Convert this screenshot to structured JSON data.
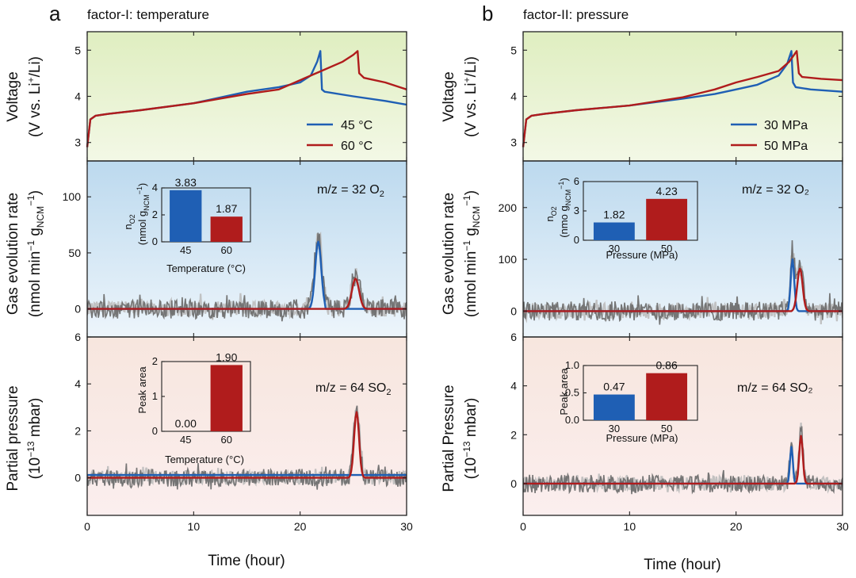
{
  "colors": {
    "blue": "#1f5fb4",
    "red": "#b01c1c",
    "noise_dark": "#6f6f6f",
    "noise_light": "#bdbdbd",
    "green_bg": "#e4f0c8",
    "blue_bg_top": "#bfdcef",
    "pink_bg_top": "#f6e2da"
  },
  "panel_a": {
    "letter": "a",
    "factor_title": "factor-I: temperature"
  },
  "panel_b": {
    "letter": "b",
    "factor_title": "factor-II: pressure"
  },
  "labels": {
    "voltage_y1": "Voltage",
    "voltage_y2": "(V vs. Li",
    "voltage_y2_sup": "+",
    "voltage_y2_end": "/Li)",
    "gas_y1": "Gas evolution rate",
    "gas_y2": "(nmol min",
    "gas_y2_sup": "−1",
    "gas_y2_mid": " g",
    "gas_y2_sub": "NCM",
    "gas_y2_sup2": "−1",
    "gas_y2_end": ")",
    "pp_a_y1": "Partial pressure",
    "pp_b_y1": "Partial Pressure",
    "pp_y2": "(10",
    "pp_y2_sup": "−13",
    "pp_y2_end": " mbar)",
    "x_label": "Time (hour)",
    "o2_a": "m/z = 32 O",
    "o2_a_sub": "2",
    "o2_b": "m/z = 32 O₂",
    "so2": "m/z = 64 SO",
    "so2_sub": "2",
    "so2_b": "m/z = 64 SO₂",
    "inset_n_a": "n",
    "inset_n_a_sub": "O2",
    "inset_unit_a": "(nmol g",
    "inset_unit_a_sub": "NCM",
    "inset_unit_a_sup": "−1",
    "inset_unit_a_end": ")",
    "inset_unit_b": "(nmo g",
    "peak_area": "Peak area",
    "temp_axis": "Temperature (°C)",
    "pressure_axis": "Pressure (MPa)"
  },
  "chart_data": [
    {
      "id": "a-voltage",
      "type": "line",
      "title": "factor-I: temperature",
      "ylabel": "Voltage (V vs. Li+/Li)",
      "xlim": [
        0,
        30
      ],
      "ylim": [
        2.6,
        5.4
      ],
      "yticks": [
        3,
        4,
        5
      ],
      "series": [
        {
          "name": "45 °C",
          "color": "blue",
          "x": [
            0,
            0.3,
            0.8,
            2,
            5,
            10,
            15,
            18,
            20,
            21,
            21.6,
            21.9,
            22.05,
            22.3,
            25,
            28,
            30
          ],
          "y": [
            2.9,
            3.5,
            3.58,
            3.62,
            3.7,
            3.85,
            4.1,
            4.2,
            4.3,
            4.45,
            4.75,
            4.98,
            4.15,
            4.1,
            4.0,
            3.9,
            3.82
          ]
        },
        {
          "name": "60 °C",
          "color": "red",
          "x": [
            0,
            0.3,
            0.8,
            2,
            5,
            10,
            15,
            18,
            20,
            22,
            24,
            25,
            25.4,
            25.55,
            26,
            28,
            30
          ],
          "y": [
            2.9,
            3.5,
            3.58,
            3.62,
            3.7,
            3.85,
            4.05,
            4.15,
            4.35,
            4.55,
            4.75,
            4.9,
            4.98,
            4.5,
            4.4,
            4.3,
            4.15
          ]
        }
      ]
    },
    {
      "id": "a-gas",
      "type": "line",
      "ylabel": "Gas evolution rate (nmol min−1 gNCM−1)",
      "annotation": "m/z = 32 O2",
      "xlim": [
        0,
        30
      ],
      "ylim": [
        -25,
        132
      ],
      "yticks": [
        0,
        50,
        100
      ],
      "series": [
        {
          "name": "45 °C",
          "color": "blue",
          "peak_center": 21.7,
          "peak_height": 60,
          "peak_range": [
            20.6,
            22.3
          ]
        },
        {
          "name": "60 °C",
          "color": "red",
          "peak_center": 25.2,
          "peak_height": 27,
          "peak_range": [
            24.2,
            26.2
          ]
        }
      ],
      "inset": {
        "type": "bar",
        "ylabel": "nO2 (nmol gNCM−1)",
        "xlabel": "Temperature (°C)",
        "categories": [
          "45",
          "60"
        ],
        "values": [
          3.83,
          1.87
        ],
        "value_labels": [
          "3.83",
          "1.87"
        ],
        "ylim": [
          0,
          4
        ],
        "yticks": [
          0,
          2,
          4
        ]
      }
    },
    {
      "id": "a-pressure",
      "type": "line",
      "ylabel": "Partial pressure (10−13 mbar)",
      "annotation": "m/z = 64 SO2",
      "xlim": [
        0,
        30
      ],
      "ylim": [
        -1.6,
        6
      ],
      "yticks": [
        0,
        2,
        4,
        6
      ],
      "series": [
        {
          "name": "45 °C",
          "color": "blue",
          "baseline": 0.12
        },
        {
          "name": "60 °C",
          "color": "red",
          "peak_center": 25.3,
          "peak_height": 2.8,
          "peak_range": [
            24.6,
            26.0
          ]
        }
      ],
      "inset": {
        "type": "bar",
        "ylabel": "Peak area",
        "xlabel": "Temperature (°C)",
        "categories": [
          "45",
          "60"
        ],
        "values": [
          0.0,
          1.9
        ],
        "value_labels": [
          "0.00",
          "1.90"
        ],
        "ylim": [
          0,
          2
        ],
        "yticks": [
          0,
          1,
          2
        ]
      }
    },
    {
      "id": "b-voltage",
      "type": "line",
      "title": "factor-II: pressure",
      "ylabel": "Voltage (V vs. Li+/Li)",
      "xlim": [
        0,
        30
      ],
      "ylim": [
        2.6,
        5.4
      ],
      "yticks": [
        3,
        4,
        5
      ],
      "series": [
        {
          "name": "30 MPa",
          "color": "blue",
          "x": [
            0,
            0.3,
            0.8,
            2,
            5,
            10,
            15,
            18,
            20,
            22,
            24,
            24.8,
            25.2,
            25.35,
            25.6,
            27,
            30
          ],
          "y": [
            2.9,
            3.5,
            3.58,
            3.62,
            3.7,
            3.8,
            3.95,
            4.05,
            4.15,
            4.25,
            4.45,
            4.7,
            4.98,
            4.3,
            4.2,
            4.15,
            4.1
          ]
        },
        {
          "name": "50 MPa",
          "color": "red",
          "x": [
            0,
            0.3,
            0.8,
            2,
            5,
            10,
            15,
            18,
            20,
            22,
            24,
            25,
            25.7,
            25.9,
            26.2,
            28,
            30
          ],
          "y": [
            2.9,
            3.5,
            3.58,
            3.62,
            3.7,
            3.8,
            3.98,
            4.15,
            4.3,
            4.42,
            4.55,
            4.75,
            4.98,
            4.5,
            4.42,
            4.38,
            4.35
          ]
        }
      ]
    },
    {
      "id": "b-gas",
      "type": "line",
      "ylabel": "Gas evolution rate (nmol min−1 gNCM−1)",
      "annotation": "m/z = 32 O2",
      "xlim": [
        0,
        30
      ],
      "ylim": [
        -50,
        290
      ],
      "yticks": [
        0,
        100,
        200
      ],
      "series": [
        {
          "name": "30 MPa",
          "color": "blue",
          "peak_center": 25.3,
          "peak_height": 100,
          "peak_range": [
            24.8,
            25.8
          ]
        },
        {
          "name": "50 MPa",
          "color": "red",
          "peak_center": 26.0,
          "peak_height": 82,
          "peak_range": [
            25.3,
            26.8
          ]
        }
      ],
      "inset": {
        "type": "bar",
        "ylabel": "nO2 (nmo gNCM−1)",
        "xlabel": "Pressure (MPa)",
        "categories": [
          "30",
          "50"
        ],
        "values": [
          1.82,
          4.23
        ],
        "value_labels": [
          "1.82",
          "4.23"
        ],
        "ylim": [
          0,
          6
        ],
        "yticks": [
          0,
          3,
          6
        ]
      }
    },
    {
      "id": "b-pressure",
      "type": "line",
      "ylabel": "Partial Pressure (10−13 mbar)",
      "annotation": "m/z = 64 SO2",
      "xlim": [
        0,
        30
      ],
      "ylim": [
        -1.3,
        6
      ],
      "yticks": [
        0,
        2,
        4,
        6
      ],
      "series": [
        {
          "name": "30 MPa",
          "color": "blue",
          "peak_center": 25.2,
          "peak_height": 1.5,
          "peak_range": [
            24.8,
            25.6
          ]
        },
        {
          "name": "50 MPa",
          "color": "red",
          "peak_center": 26.1,
          "peak_height": 1.95,
          "peak_range": [
            25.6,
            26.6
          ]
        }
      ],
      "inset": {
        "type": "bar",
        "ylabel": "Peak area",
        "xlabel": "Pressure (MPa)",
        "categories": [
          "30",
          "50"
        ],
        "values": [
          0.47,
          0.86
        ],
        "value_labels": [
          "0.47",
          "0.86"
        ],
        "ylim": [
          0,
          1.0
        ],
        "yticks": [
          0.0,
          0.5,
          1.0
        ]
      }
    }
  ]
}
